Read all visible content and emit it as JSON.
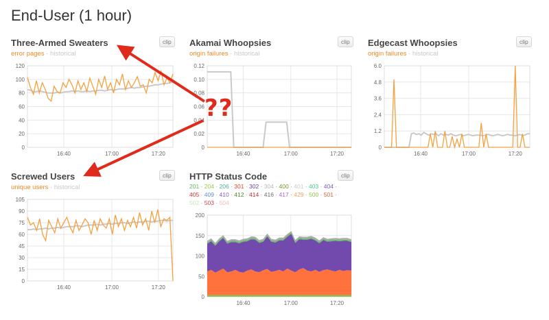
{
  "page": {
    "title": "End-User (1 hour)"
  },
  "panels": {
    "sweaters": {
      "title": "Three-Armed Sweaters",
      "sub_active": "error pages",
      "sub_sep": " · ",
      "sub_inactive": "historical",
      "clip": "clip",
      "y_ticks": [
        "120",
        "100",
        "80",
        "60",
        "40",
        "20",
        "0"
      ],
      "x_ticks": [
        "16:40",
        "17:00",
        "17:20"
      ]
    },
    "akamai": {
      "title": "Akamai Whoopsies",
      "sub_active": "origin failures",
      "sub_sep": " · ",
      "sub_inactive": "historical",
      "clip": "clip",
      "y_ticks": [
        "0.12",
        "0.10",
        "0.08",
        "0.06",
        "0.04",
        "0.02",
        "0"
      ],
      "x_ticks": [
        "16:40",
        "17:00",
        "17:20"
      ]
    },
    "edgecast": {
      "title": "Edgecast Whoopsies",
      "sub_active": "origin failures",
      "sub_sep": " · ",
      "sub_inactive": "historical",
      "clip": "clip",
      "y_ticks": [
        "6.0",
        "4.8",
        "3.6",
        "2.4",
        "1.2",
        "0"
      ],
      "x_ticks": [
        "16:40",
        "17:00",
        "17:20"
      ]
    },
    "users": {
      "title": "Screwed Users",
      "sub_active": "unique users",
      "sub_sep": " · ",
      "sub_inactive": "historical",
      "clip": "clip",
      "y_ticks": [
        "105",
        "90",
        "75",
        "60",
        "45",
        "30",
        "15",
        "0"
      ],
      "x_ticks": [
        "16:40",
        "17:00",
        "17:20"
      ]
    },
    "status": {
      "title": "HTTP Status Code",
      "clip": "clip",
      "legend": [
        {
          "code": "201",
          "color": "#5cb85c"
        },
        {
          "code": "204",
          "color": "#8fcf3c"
        },
        {
          "code": "206",
          "color": "#4cae9c"
        },
        {
          "code": "301",
          "color": "#e8402a"
        },
        {
          "code": "302",
          "color": "#6a3fa8"
        },
        {
          "code": "304",
          "color": "#b8b8b8"
        },
        {
          "code": "400",
          "color": "#6d9a2a"
        },
        {
          "code": "401",
          "color": "#cccccc"
        },
        {
          "code": "403",
          "color": "#3ccf8a"
        },
        {
          "code": "404",
          "color": "#7d55c7"
        },
        {
          "code": "405",
          "color": "#d9342b"
        },
        {
          "code": "409",
          "color": "#5b8fd6"
        },
        {
          "code": "410",
          "color": "#8a5cc0"
        },
        {
          "code": "412",
          "color": "#4a8a2a"
        },
        {
          "code": "414",
          "color": "#c42a2a"
        },
        {
          "code": "416",
          "color": "#6d6d6d"
        },
        {
          "code": "417",
          "color": "#b05fd0"
        },
        {
          "code": "429",
          "color": "#f0a35a"
        },
        {
          "code": "500",
          "color": "#8cc63f"
        },
        {
          "code": "501",
          "color": "#e0603a"
        },
        {
          "code": "502",
          "color": "#c8e6b0"
        },
        {
          "code": "503",
          "color": "#d0404a"
        },
        {
          "code": "504",
          "color": "#f2c0c0"
        }
      ],
      "y_ticks": [
        "200",
        "150",
        "100",
        "50",
        "0"
      ],
      "x_ticks": [
        "16:40",
        "17:00",
        "17:20"
      ]
    }
  },
  "annotation": {
    "text": "??"
  },
  "colors": {
    "series": "#f5a03c",
    "historical": "#c9c9c9",
    "purple": "#6a3fa8",
    "orange": "#ff6a33",
    "arrow": "#e02a1c"
  },
  "chart_data": [
    {
      "type": "line",
      "name": "sweaters",
      "ylim": [
        0,
        120
      ],
      "series": [
        {
          "values": [
            103,
            88,
            78,
            98,
            80,
            95,
            85,
            72,
            68,
            90,
            82,
            80,
            95,
            88,
            100,
            92,
            80,
            98,
            85,
            95,
            82,
            102,
            90,
            78,
            100,
            88,
            105,
            85,
            95,
            80,
            100,
            92,
            108,
            85,
            98,
            88,
            95,
            104,
            90,
            92,
            80,
            100,
            95,
            110,
            98,
            112,
            92,
            102,
            95,
            108
          ]
        },
        {
          "values": [
            85,
            84,
            82,
            82,
            83,
            82,
            81,
            80,
            80,
            80,
            81,
            80,
            81,
            82,
            82,
            83,
            82,
            83,
            82,
            82,
            83,
            82,
            83,
            83,
            84,
            84,
            83,
            84,
            85,
            84,
            85,
            86,
            86,
            86,
            87,
            88,
            87,
            88,
            88,
            89,
            90,
            90,
            91,
            92,
            92,
            93,
            94,
            94,
            95,
            96
          ]
        }
      ]
    },
    {
      "type": "line",
      "name": "akamai",
      "ylim": [
        0,
        0.12
      ],
      "series": [
        {
          "values": [
            0,
            0,
            0,
            0,
            0,
            0,
            0,
            0,
            0,
            0,
            0,
            0,
            0,
            0,
            0,
            0,
            0,
            0,
            0,
            0,
            0,
            0,
            0,
            0,
            0,
            0,
            0,
            0,
            0,
            0,
            0,
            0,
            0,
            0,
            0,
            0,
            0,
            0,
            0,
            0,
            0,
            0,
            0,
            0,
            0,
            0,
            0,
            0,
            0,
            0
          ]
        },
        {
          "values": [
            0.111,
            0.111,
            0.111,
            0.111,
            0.111,
            0.111,
            0.111,
            0.111,
            0.111,
            0,
            0,
            0,
            0,
            0,
            0,
            0,
            0,
            0,
            0,
            0,
            0.037,
            0.037,
            0.037,
            0.037,
            0.037,
            0.037,
            0.037,
            0.037,
            0,
            0,
            0,
            0,
            0,
            0,
            0,
            0,
            0,
            0,
            0,
            0,
            0,
            0,
            0,
            0,
            0,
            0,
            0,
            0,
            0,
            0
          ]
        }
      ]
    },
    {
      "type": "line",
      "name": "edgecast",
      "ylim": [
        0,
        6
      ],
      "series": [
        {
          "values": [
            0,
            0,
            0,
            0,
            5,
            0,
            0,
            0,
            0,
            0,
            0,
            0,
            0,
            0,
            0,
            0,
            0,
            0,
            0,
            1,
            0,
            1.2,
            0,
            0,
            0,
            1.2,
            0,
            0,
            0.8,
            0,
            0.6,
            0,
            1,
            0,
            0,
            0,
            0,
            0,
            0,
            0,
            1.8,
            0,
            1,
            0,
            0,
            0,
            0,
            0,
            0,
            0,
            0,
            0,
            0,
            0,
            6,
            0,
            0,
            1,
            0,
            0,
            0
          ]
        },
        {
          "values": [
            0,
            0,
            0,
            0,
            0,
            0,
            0,
            0,
            0,
            0,
            0,
            1,
            1.05,
            0.95,
            1,
            0.9,
            1.1,
            1,
            0.9,
            1,
            0.95,
            1,
            0.85,
            1,
            0.9,
            0.95,
            0.9,
            1,
            0.9,
            0.85,
            0.9,
            0.95,
            0.85,
            0.9,
            0.95,
            0.9,
            0.85,
            0.9,
            0.9,
            0.9,
            0.85,
            0.9,
            0.95,
            0.9,
            0.85,
            0.9,
            0.95,
            0.9,
            0.85,
            0.9,
            0.95,
            0.9,
            0.9,
            0.85,
            0.9,
            0.95,
            0.85,
            0.9,
            1,
            1
          ]
        }
      ]
    },
    {
      "type": "line",
      "name": "users",
      "ylim": [
        0,
        105
      ],
      "series": [
        {
          "values": [
            82,
            72,
            75,
            65,
            80,
            60,
            52,
            78,
            70,
            62,
            80,
            68,
            75,
            82,
            70,
            62,
            78,
            65,
            72,
            80,
            75,
            60,
            78,
            65,
            80,
            72,
            68,
            80,
            60,
            85,
            70,
            80,
            65,
            78,
            70,
            82,
            68,
            88,
            72,
            80,
            65,
            90,
            75,
            92,
            70,
            80,
            78,
            82,
            0
          ]
        },
        {
          "values": [
            66,
            66,
            67,
            66,
            67,
            67,
            68,
            67,
            68,
            68,
            69,
            68,
            69,
            70,
            70,
            70,
            71,
            71,
            70,
            71,
            72,
            72,
            72,
            73,
            72,
            73,
            73,
            74,
            73,
            74,
            74,
            75,
            75,
            74,
            75,
            76,
            75,
            76,
            76,
            77,
            77,
            76,
            77,
            77,
            78,
            78,
            77,
            78,
            78
          ]
        }
      ]
    },
    {
      "type": "area",
      "name": "status",
      "ylim": [
        0,
        200
      ],
      "series": [
        {
          "name": "200-series green",
          "values": [
            4,
            4,
            4,
            4,
            4,
            4,
            4,
            4,
            4,
            4,
            4,
            4,
            4,
            4,
            4,
            4,
            4,
            4,
            4,
            4,
            4,
            4,
            4,
            4,
            4,
            4,
            4,
            4,
            4,
            4,
            4,
            4,
            4,
            4,
            4,
            4,
            4
          ]
        },
        {
          "name": "orange",
          "values": [
            58,
            62,
            55,
            60,
            65,
            56,
            58,
            62,
            57,
            55,
            60,
            63,
            58,
            56,
            61,
            64,
            57,
            59,
            62,
            58,
            65,
            60,
            56,
            63,
            66,
            60,
            58,
            62,
            57,
            61,
            63,
            60,
            58,
            62,
            59,
            61,
            60
          ]
        },
        {
          "name": "purple",
          "values": [
            68,
            70,
            66,
            72,
            75,
            70,
            72,
            68,
            70,
            76,
            72,
            74,
            78,
            72,
            70,
            80,
            74,
            70,
            72,
            76,
            78,
            90,
            72,
            74,
            70,
            76,
            80,
            72,
            70,
            74,
            68,
            72,
            75,
            70,
            74,
            72,
            70
          ]
        },
        {
          "name": "green band",
          "values": [
            3,
            3,
            3,
            3,
            3,
            3,
            3,
            3,
            3,
            3,
            3,
            3,
            3,
            3,
            3,
            3,
            3,
            3,
            3,
            3,
            3,
            3,
            3,
            3,
            3,
            3,
            3,
            3,
            3,
            3,
            3,
            3,
            3,
            3,
            3,
            3,
            3
          ]
        },
        {
          "name": "grey top",
          "values": [
            4,
            4,
            4,
            4,
            4,
            4,
            4,
            4,
            4,
            4,
            4,
            4,
            4,
            4,
            4,
            4,
            4,
            4,
            4,
            4,
            4,
            4,
            4,
            4,
            4,
            4,
            4,
            4,
            4,
            4,
            4,
            4,
            4,
            4,
            4,
            4,
            4
          ]
        }
      ]
    }
  ]
}
